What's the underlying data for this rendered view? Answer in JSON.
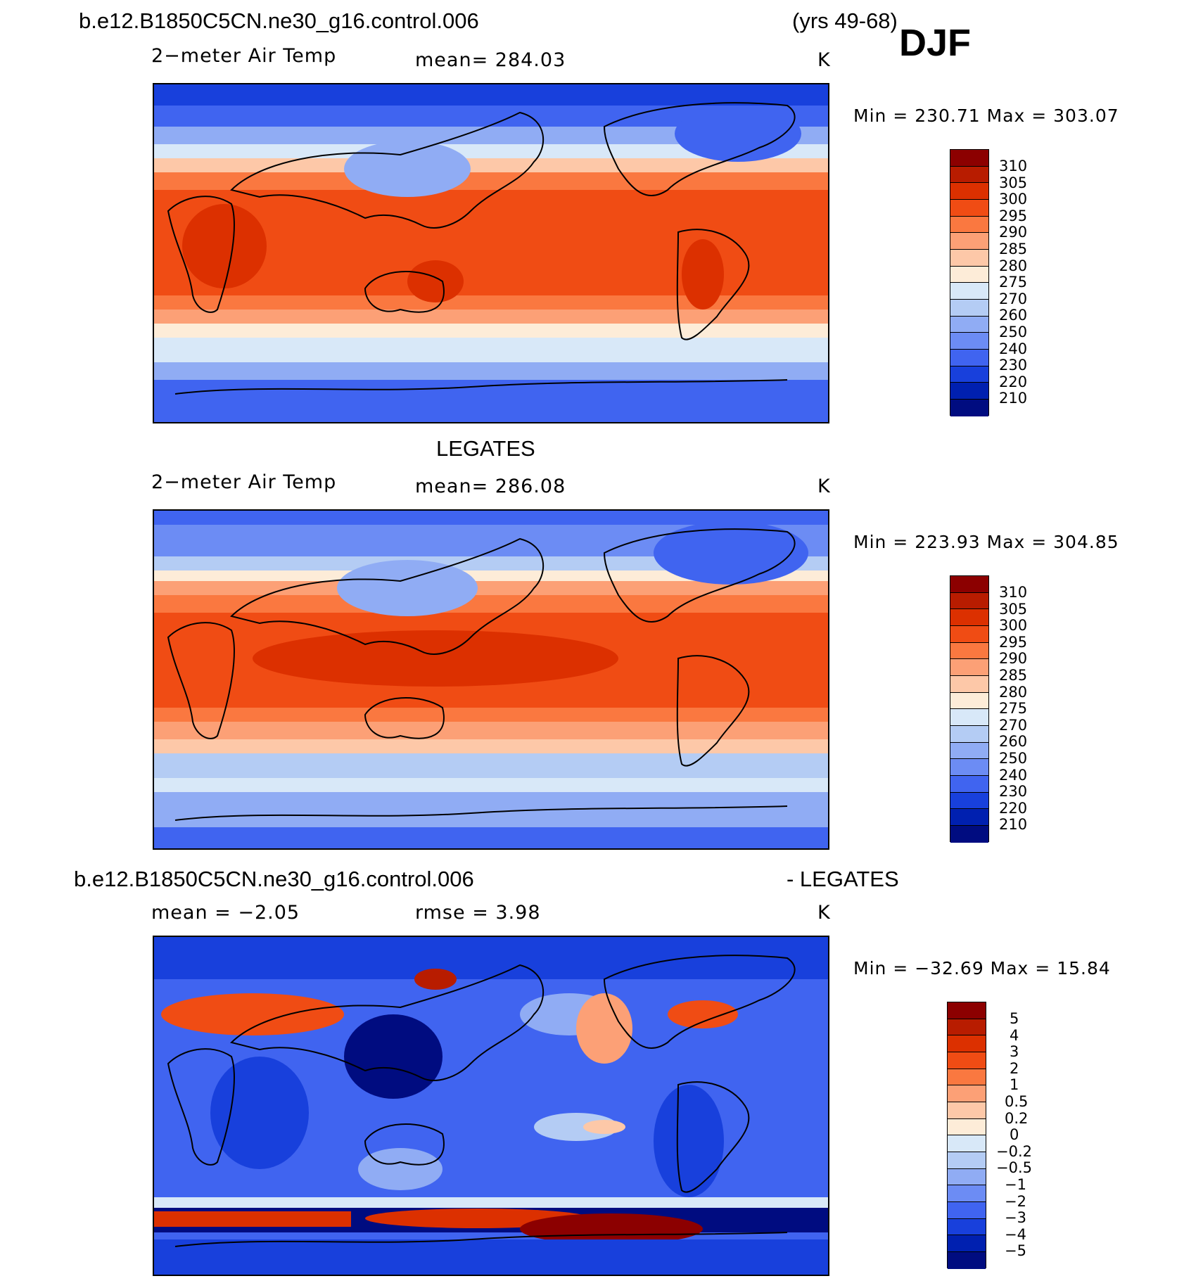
{
  "header": {
    "case_name": "b.e12.B1850C5CN.ne30_g16.control.006",
    "years": "(yrs 49-68)",
    "season": "DJF"
  },
  "panels": [
    {
      "title": "",
      "variable": "2−meter Air Temp",
      "stat": "mean=  284.03",
      "units": "K",
      "minmax": "Min  =  230.71  Max  =  303.07",
      "field": "model"
    },
    {
      "title": "LEGATES",
      "variable": "2−meter Air Temp",
      "stat": "mean=  286.08",
      "units": "K",
      "minmax": "Min  =  223.93  Max  =  304.85",
      "field": "obs"
    },
    {
      "title": "b.e12.B1850C5CN.ne30_g16.control.006",
      "title_right": "- LEGATES",
      "variable": "mean  =    −2.05",
      "stat": "rmse  =      3.98",
      "units": "K",
      "minmax": "Min  =  −32.69  Max  =     15.84",
      "field": "diff"
    }
  ],
  "colorbars": {
    "temperature": {
      "labels": [
        "310",
        "305",
        "300",
        "295",
        "290",
        "285",
        "280",
        "275",
        "270",
        "260",
        "250",
        "240",
        "230",
        "220",
        "210"
      ],
      "colors": [
        "#8c0000",
        "#b81c00",
        "#dc3000",
        "#f04c14",
        "#fa7840",
        "#fca076",
        "#fdc8a8",
        "#fdecd8",
        "#d8e8f8",
        "#b4ccf4",
        "#90acf4",
        "#6c8cf4",
        "#4064f0",
        "#1840dc",
        "#0020b0",
        "#000c80"
      ]
    },
    "difference": {
      "labels": [
        "5",
        "4",
        "3",
        "2",
        "1",
        "0.5",
        "0.2",
        "0",
        "−0.2",
        "−0.5",
        "−1",
        "−2",
        "−3",
        "−4",
        "−5"
      ],
      "colors": [
        "#8c0000",
        "#b81c00",
        "#dc3000",
        "#f04c14",
        "#fa7840",
        "#fca076",
        "#fdc8a8",
        "#fdecd8",
        "#d8e8f8",
        "#b4ccf4",
        "#90acf4",
        "#6c8cf4",
        "#4064f0",
        "#1840dc",
        "#0020b0",
        "#000c80"
      ]
    }
  }
}
